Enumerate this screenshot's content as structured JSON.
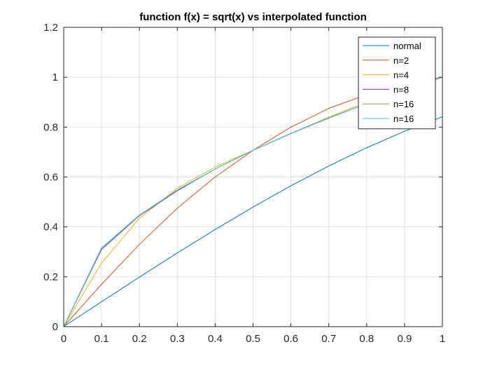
{
  "chart_data": {
    "type": "line",
    "title": "function  f(x) = sqrt(x) vs interpolated function",
    "xlabel": "",
    "ylabel": "",
    "xlim": [
      0,
      1
    ],
    "ylim": [
      0,
      1.2
    ],
    "xticks": [
      0,
      0.1,
      0.2,
      0.3,
      0.4,
      0.5,
      0.6,
      0.7,
      0.8,
      0.9,
      1
    ],
    "xtick_labels": [
      "0",
      "0.1",
      "0.2",
      "0.3",
      "0.4",
      "0.5",
      "0.6",
      "0.7",
      "0.8",
      "0.9",
      "1"
    ],
    "yticks": [
      0,
      0.2,
      0.4,
      0.6,
      0.8,
      1,
      1.2
    ],
    "ytick_labels": [
      "0",
      "0.2",
      "0.4",
      "0.6",
      "0.8",
      "1",
      "1.2"
    ],
    "grid": true,
    "legend_position": "top-right",
    "series": [
      {
        "name": "normal",
        "color": "#0072BD",
        "x": [
          0,
          0.1,
          0.2,
          0.3,
          0.4,
          0.5,
          0.6,
          0.7,
          0.8,
          0.9,
          1
        ],
        "y": [
          0,
          0.0998,
          0.1987,
          0.2955,
          0.3894,
          0.4794,
          0.5646,
          0.6442,
          0.7174,
          0.7833,
          0.8415
        ]
      },
      {
        "name": "n=2",
        "color": "#D95319",
        "x": [
          0,
          0.1,
          0.2,
          0.3,
          0.4,
          0.5,
          0.6,
          0.7,
          0.8,
          0.9,
          1
        ],
        "y": [
          0,
          0.17,
          0.33,
          0.475,
          0.6,
          0.707,
          0.8,
          0.875,
          0.93,
          0.97,
          1.0
        ]
      },
      {
        "name": "n=4",
        "color": "#EDB120",
        "x": [
          0,
          0.1,
          0.2,
          0.3,
          0.4,
          0.5,
          0.6,
          0.7,
          0.8,
          0.9,
          1
        ],
        "y": [
          0,
          0.255,
          0.435,
          0.555,
          0.64,
          0.707,
          0.775,
          0.84,
          0.9,
          0.95,
          1.0
        ]
      },
      {
        "name": "n=8",
        "color": "#7E2F8E",
        "x": [
          0,
          0.1,
          0.2,
          0.3,
          0.4,
          0.5,
          0.6,
          0.7,
          0.8,
          0.9,
          1
        ],
        "y": [
          0,
          0.31,
          0.445,
          0.545,
          0.632,
          0.707,
          0.774,
          0.836,
          0.894,
          0.949,
          1.0
        ]
      },
      {
        "name": "n=16",
        "color": "#77AC30",
        "x": [
          0,
          0.1,
          0.2,
          0.3,
          0.4,
          0.5,
          0.6,
          0.7,
          0.8,
          0.9,
          1
        ],
        "y": [
          0,
          0.315,
          0.447,
          0.548,
          0.632,
          0.707,
          0.775,
          0.837,
          0.894,
          0.949,
          1.0
        ]
      },
      {
        "name": "n=16",
        "color": "#4DBEEE",
        "x": [
          0,
          0.1,
          0.2,
          0.3,
          0.4,
          0.5,
          0.6,
          0.7,
          0.8,
          0.9,
          1
        ],
        "y": [
          0,
          0.316,
          0.447,
          0.548,
          0.632,
          0.707,
          0.775,
          0.837,
          0.894,
          0.949,
          1.0
        ]
      }
    ]
  }
}
